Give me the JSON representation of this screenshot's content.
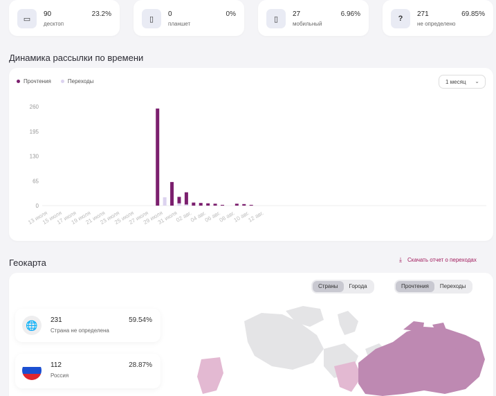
{
  "devices": [
    {
      "icon": "desktop-icon",
      "glyph": "▭",
      "count": "90",
      "label": "десктоп",
      "pct": "23.2%"
    },
    {
      "icon": "tablet-icon",
      "glyph": "▯",
      "count": "0",
      "label": "планшет",
      "pct": "0%"
    },
    {
      "icon": "mobile-icon",
      "glyph": "▯",
      "count": "27",
      "label": "мобильный",
      "pct": "6.96%"
    },
    {
      "icon": "unknown-device-icon",
      "glyph": "?",
      "count": "271",
      "label": "не определено",
      "pct": "69.85%"
    }
  ],
  "dynamics": {
    "title": "Динамика рассылки по времени",
    "legend_reads": "Прочтения",
    "legend_clicks": "Переходы",
    "period_select": "1 месяц",
    "colors": {
      "reads": "#7b1f6e",
      "clicks": "#dcd3ef"
    }
  },
  "chart_data": {
    "type": "bar",
    "x_ticks": [
      "13 июля",
      "15 июля",
      "17 июля",
      "19 июля",
      "21 июля",
      "23 июля",
      "25 июля",
      "27 июля",
      "29 июля",
      "31 июля",
      "02 авг.",
      "04 авг.",
      "06 авг.",
      "08 авг.",
      "10 авг.",
      "12 авг."
    ],
    "y_ticks": [
      "260",
      "195",
      "130",
      "65",
      "0"
    ],
    "ylim": [
      0,
      260
    ],
    "series": [
      {
        "name": "Прочтения",
        "color": "#7b1f6e",
        "points": [
          {
            "x": "29 июля",
            "y": 255
          },
          {
            "x": "31 июля",
            "y": 62
          },
          {
            "x": "01 авг.",
            "y": 23
          },
          {
            "x": "02 авг.",
            "y": 35
          },
          {
            "x": "03 авг.",
            "y": 8
          },
          {
            "x": "04 авг.",
            "y": 7
          },
          {
            "x": "05 авг.",
            "y": 6
          },
          {
            "x": "06 авг.",
            "y": 5
          },
          {
            "x": "07 авг.",
            "y": 2
          },
          {
            "x": "09 авг.",
            "y": 5
          },
          {
            "x": "10 авг.",
            "y": 4
          },
          {
            "x": "11 авг.",
            "y": 2
          }
        ]
      },
      {
        "name": "Переходы",
        "color": "#dcd3ef",
        "points": [
          {
            "x": "30 июля",
            "y": 22
          },
          {
            "x": "01 авг.",
            "y": 6
          },
          {
            "x": "02 авг.",
            "y": 3
          }
        ]
      }
    ]
  },
  "geo": {
    "title": "Геокарта",
    "download_label": "Скачать отчет о переходах",
    "tabs_region": [
      "Страны",
      "Города"
    ],
    "tabs_metric": [
      "Прочтения",
      "Переходы"
    ],
    "items": [
      {
        "count": "231",
        "label": "Страна не определена",
        "pct": "59.54%"
      },
      {
        "count": "112",
        "label": "Россия",
        "pct": "28.87%"
      }
    ],
    "map_colors": {
      "russia": "#be89b2",
      "other": "#e4e4e6",
      "highlight": "#e3b9d2"
    }
  }
}
